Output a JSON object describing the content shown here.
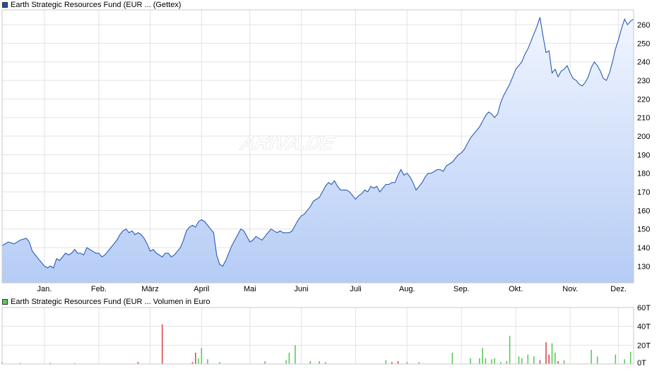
{
  "price_legend": {
    "label": "Earth Strategic Resources Fund (EUR ... (Gettex)",
    "color": "#1f4ea8"
  },
  "volume_legend": {
    "label": "Earth Strategic Resources Fund (EUR ... Volumen in Euro",
    "color": "#5cc95c"
  },
  "watermark": "ARIVA.DE",
  "chart_data": [
    {
      "type": "area",
      "series": [
        {
          "points": [
            [
              0,
              141
            ],
            [
              2,
              143
            ],
            [
              4,
              142
            ],
            [
              6,
              144
            ],
            [
              8,
              145
            ],
            [
              9,
              143
            ],
            [
              10,
              138
            ],
            [
              11,
              136
            ],
            [
              12,
              134
            ],
            [
              13,
              132
            ],
            [
              14,
              130
            ],
            [
              15,
              129
            ],
            [
              16,
              130
            ],
            [
              17,
              129
            ],
            [
              18,
              134
            ],
            [
              19,
              133
            ],
            [
              20,
              135
            ],
            [
              21,
              137
            ],
            [
              22,
              136
            ],
            [
              23,
              137
            ],
            [
              24,
              139
            ],
            [
              25,
              137
            ],
            [
              26,
              137
            ],
            [
              27,
              136
            ],
            [
              28,
              140
            ],
            [
              29,
              139
            ],
            [
              30,
              138
            ],
            [
              31,
              137
            ],
            [
              32,
              137
            ],
            [
              33,
              135
            ],
            [
              34,
              136
            ],
            [
              35,
              138
            ],
            [
              36,
              140
            ],
            [
              37,
              142
            ],
            [
              38,
              144
            ],
            [
              39,
              147
            ],
            [
              40,
              149
            ],
            [
              41,
              150
            ],
            [
              42,
              148
            ],
            [
              43,
              149
            ],
            [
              44,
              147
            ],
            [
              45,
              148
            ],
            [
              46,
              147
            ],
            [
              47,
              145
            ],
            [
              48,
              142
            ],
            [
              49,
              138
            ],
            [
              50,
              139
            ],
            [
              51,
              137
            ],
            [
              52,
              136
            ],
            [
              53,
              135
            ],
            [
              54,
              137
            ],
            [
              55,
              137
            ],
            [
              56,
              135
            ],
            [
              57,
              136
            ],
            [
              58,
              138
            ],
            [
              59,
              140
            ],
            [
              60,
              144
            ],
            [
              61,
              149
            ],
            [
              62,
              151
            ],
            [
              63,
              152
            ],
            [
              64,
              151
            ],
            [
              65,
              154
            ],
            [
              66,
              155
            ],
            [
              67,
              154
            ],
            [
              68,
              152
            ],
            [
              69,
              150
            ],
            [
              70,
              148
            ],
            [
              71,
              136
            ],
            [
              72,
              131
            ],
            [
              73,
              130
            ],
            [
              74,
              133
            ],
            [
              75,
              137
            ],
            [
              76,
              141
            ],
            [
              77,
              144
            ],
            [
              78,
              147
            ],
            [
              79,
              150
            ],
            [
              80,
              149
            ],
            [
              81,
              146
            ],
            [
              82,
              143
            ],
            [
              83,
              144
            ],
            [
              84,
              146
            ],
            [
              85,
              145
            ],
            [
              86,
              144
            ],
            [
              87,
              146
            ],
            [
              88,
              148
            ],
            [
              89,
              150
            ],
            [
              90,
              149
            ],
            [
              91,
              148
            ],
            [
              92,
              149
            ],
            [
              93,
              148
            ],
            [
              94,
              148
            ],
            [
              95,
              148
            ],
            [
              96,
              149
            ],
            [
              97,
              152
            ],
            [
              98,
              155
            ],
            [
              99,
              157
            ],
            [
              100,
              158
            ],
            [
              101,
              160
            ],
            [
              102,
              162
            ],
            [
              103,
              165
            ],
            [
              104,
              166
            ],
            [
              105,
              167
            ],
            [
              106,
              170
            ],
            [
              107,
              173
            ],
            [
              108,
              175
            ],
            [
              109,
              174
            ],
            [
              110,
              176
            ],
            [
              111,
              173
            ],
            [
              112,
              171
            ],
            [
              113,
              171
            ],
            [
              114,
              171
            ],
            [
              115,
              170
            ],
            [
              116,
              168
            ],
            [
              117,
              166
            ],
            [
              118,
              168
            ],
            [
              119,
              169
            ],
            [
              120,
              171
            ],
            [
              121,
              170
            ],
            [
              122,
              173
            ],
            [
              123,
              172
            ],
            [
              124,
              173
            ],
            [
              125,
              170
            ],
            [
              126,
              172
            ],
            [
              127,
              174
            ],
            [
              128,
              174
            ],
            [
              129,
              175
            ],
            [
              130,
              175
            ],
            [
              131,
              179
            ],
            [
              132,
              182
            ],
            [
              133,
              179
            ],
            [
              134,
              180
            ],
            [
              135,
              178
            ],
            [
              136,
              175
            ],
            [
              137,
              171
            ],
            [
              138,
              173
            ],
            [
              139,
              175
            ],
            [
              140,
              178
            ],
            [
              141,
              180
            ],
            [
              142,
              180
            ],
            [
              143,
              181
            ],
            [
              144,
              182
            ],
            [
              145,
              182
            ],
            [
              146,
              181
            ],
            [
              147,
              184
            ],
            [
              148,
              185
            ],
            [
              149,
              186
            ],
            [
              150,
              188
            ],
            [
              151,
              190
            ],
            [
              152,
              191
            ],
            [
              153,
              193
            ],
            [
              154,
              196
            ],
            [
              155,
              199
            ],
            [
              156,
              201
            ],
            [
              157,
              203
            ],
            [
              158,
              205
            ],
            [
              159,
              208
            ],
            [
              160,
              211
            ],
            [
              161,
              213
            ],
            [
              162,
              212
            ],
            [
              163,
              210
            ],
            [
              164,
              212
            ],
            [
              165,
              218
            ],
            [
              166,
              222
            ],
            [
              167,
              225
            ],
            [
              168,
              228
            ],
            [
              169,
              232
            ],
            [
              170,
              236
            ],
            [
              171,
              238
            ],
            [
              172,
              240
            ],
            [
              173,
              244
            ],
            [
              174,
              247
            ],
            [
              175,
              251
            ],
            [
              176,
              255
            ],
            [
              177,
              259
            ],
            [
              178,
              264
            ],
            [
              179,
              254
            ],
            [
              180,
              245
            ],
            [
              181,
              246
            ],
            [
              182,
              234
            ],
            [
              183,
              236
            ],
            [
              184,
              232
            ],
            [
              185,
              235
            ],
            [
              186,
              236
            ],
            [
              187,
              238
            ],
            [
              188,
              234
            ],
            [
              189,
              231
            ],
            [
              190,
              230
            ],
            [
              191,
              228
            ],
            [
              192,
              227
            ],
            [
              193,
              229
            ],
            [
              194,
              232
            ],
            [
              195,
              237
            ],
            [
              196,
              240
            ],
            [
              197,
              238
            ],
            [
              198,
              235
            ],
            [
              199,
              231
            ],
            [
              200,
              230
            ],
            [
              201,
              234
            ],
            [
              202,
              240
            ],
            [
              203,
              247
            ],
            [
              204,
              252
            ],
            [
              205,
              258
            ],
            [
              206,
              263
            ],
            [
              207,
              260
            ],
            [
              208,
              262
            ],
            [
              209,
              263
            ]
          ]
        }
      ],
      "x_range": [
        0,
        209
      ],
      "y_range": [
        121,
        268
      ],
      "y_ticks": [
        130,
        140,
        150,
        160,
        170,
        180,
        190,
        200,
        210,
        220,
        230,
        240,
        250,
        260
      ],
      "x_ticks": [
        {
          "label": "Jan.",
          "x": 14
        },
        {
          "label": "Feb.",
          "x": 32
        },
        {
          "label": "März",
          "x": 49
        },
        {
          "label": "April",
          "x": 66
        },
        {
          "label": "Mai",
          "x": 82
        },
        {
          "label": "Juni",
          "x": 99
        },
        {
          "label": "Juli",
          "x": 117
        },
        {
          "label": "Aug.",
          "x": 134
        },
        {
          "label": "Sep.",
          "x": 152
        },
        {
          "label": "Okt.",
          "x": 170
        },
        {
          "label": "Nov.",
          "x": 188
        },
        {
          "label": "Dez.",
          "x": 204
        }
      ],
      "grid": true,
      "line_color": "#2a5cb8",
      "fill_top": "#f1f5ff",
      "fill_bottom": "#b5ccf5"
    },
    {
      "type": "bar",
      "y_range": [
        0,
        60
      ],
      "y_ticks": [
        0,
        20,
        40,
        60
      ],
      "y_tick_labels": [
        "0T",
        "20T",
        "40T",
        "60T"
      ],
      "bars": [
        {
          "x": 0,
          "v": 2,
          "c": "r"
        },
        {
          "x": 6,
          "v": 1,
          "c": "r"
        },
        {
          "x": 16,
          "v": 1,
          "c": "r"
        },
        {
          "x": 24,
          "v": 1,
          "c": "g"
        },
        {
          "x": 45,
          "v": 2,
          "c": "r"
        },
        {
          "x": 53,
          "v": 42,
          "c": "r"
        },
        {
          "x": 63,
          "v": 2,
          "c": "r"
        },
        {
          "x": 64,
          "v": 12,
          "c": "r"
        },
        {
          "x": 65,
          "v": 6,
          "c": "g"
        },
        {
          "x": 66,
          "v": 17,
          "c": "g"
        },
        {
          "x": 68,
          "v": 5,
          "c": "g"
        },
        {
          "x": 72,
          "v": 2,
          "c": "g"
        },
        {
          "x": 87,
          "v": 3,
          "c": "g"
        },
        {
          "x": 94,
          "v": 4,
          "c": "g"
        },
        {
          "x": 95,
          "v": 12,
          "c": "g"
        },
        {
          "x": 97,
          "v": 20,
          "c": "g"
        },
        {
          "x": 102,
          "v": 3,
          "c": "g"
        },
        {
          "x": 105,
          "v": 3,
          "c": "g"
        },
        {
          "x": 107,
          "v": 2,
          "c": "g"
        },
        {
          "x": 127,
          "v": 4,
          "c": "g"
        },
        {
          "x": 129,
          "v": 2,
          "c": "r"
        },
        {
          "x": 131,
          "v": 3,
          "c": "r"
        },
        {
          "x": 134,
          "v": 2,
          "c": "g"
        },
        {
          "x": 138,
          "v": 2,
          "c": "g"
        },
        {
          "x": 149,
          "v": 12,
          "c": "g"
        },
        {
          "x": 155,
          "v": 6,
          "c": "g"
        },
        {
          "x": 158,
          "v": 6,
          "c": "g"
        },
        {
          "x": 159,
          "v": 17,
          "c": "g"
        },
        {
          "x": 160,
          "v": 6,
          "c": "g"
        },
        {
          "x": 162,
          "v": 5,
          "c": "g"
        },
        {
          "x": 163,
          "v": 6,
          "c": "g"
        },
        {
          "x": 165,
          "v": 2,
          "c": "g"
        },
        {
          "x": 167,
          "v": 3,
          "c": "g"
        },
        {
          "x": 168,
          "v": 30,
          "c": "g"
        },
        {
          "x": 171,
          "v": 8,
          "c": "g"
        },
        {
          "x": 172,
          "v": 6,
          "c": "g"
        },
        {
          "x": 174,
          "v": 10,
          "c": "g"
        },
        {
          "x": 176,
          "v": 8,
          "c": "g"
        },
        {
          "x": 178,
          "v": 4,
          "c": "r"
        },
        {
          "x": 180,
          "v": 23,
          "c": "r"
        },
        {
          "x": 181,
          "v": 10,
          "c": "r"
        },
        {
          "x": 182,
          "v": 22,
          "c": "g"
        },
        {
          "x": 183,
          "v": 12,
          "c": "g"
        },
        {
          "x": 184,
          "v": 3,
          "c": "r"
        },
        {
          "x": 186,
          "v": 4,
          "c": "g"
        },
        {
          "x": 195,
          "v": 15,
          "c": "g"
        },
        {
          "x": 197,
          "v": 8,
          "c": "g"
        },
        {
          "x": 203,
          "v": 10,
          "c": "g"
        },
        {
          "x": 206,
          "v": 5,
          "c": "g"
        },
        {
          "x": 208,
          "v": 13,
          "c": "g"
        }
      ],
      "up_color": "#5cc95c",
      "down_color": "#d94a4a"
    }
  ]
}
